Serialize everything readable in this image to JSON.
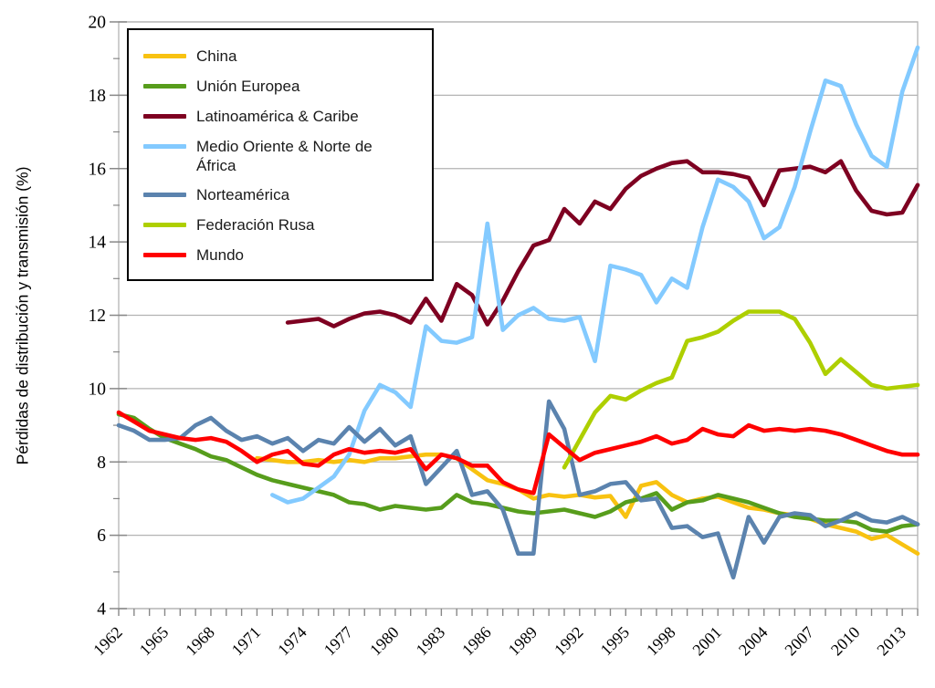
{
  "chart_data": {
    "type": "line",
    "title": "",
    "ylabel": "Pérdidas de distribución y transmisión (%)",
    "xlabel": "",
    "ylim": [
      4,
      20
    ],
    "x_range": [
      1962,
      2014
    ],
    "y_ticks": [
      4,
      6,
      8,
      10,
      12,
      14,
      16,
      18,
      20
    ],
    "x_tick_labels": [
      "1962",
      "1965",
      "1968",
      "1971",
      "1974",
      "1977",
      "1980",
      "1983",
      "1986",
      "1989",
      "1992",
      "1995",
      "1998",
      "2001",
      "2004",
      "2007",
      "2010",
      "2013"
    ],
    "x_label_step_years": 3,
    "x_minor_tick_step_years": 1,
    "grid": "horizontal",
    "legend_position": "top-left",
    "background_color": "#ffffff",
    "grid_color": "#b3b3b3",
    "tick_color": "#888888",
    "text_color": "#000000",
    "series": [
      {
        "name": "China",
        "color": "#F8C211",
        "start_year": 1971,
        "values": [
          8.1,
          8.05,
          8.0,
          8.0,
          8.05,
          8.0,
          8.05,
          8.0,
          8.1,
          8.1,
          8.15,
          8.2,
          8.2,
          8.1,
          7.8,
          7.5,
          7.4,
          7.25,
          7.0,
          7.1,
          7.05,
          7.1,
          7.03,
          7.07,
          6.5,
          7.35,
          7.45,
          7.1,
          6.9,
          7.0,
          7.05,
          6.9,
          6.75,
          6.7,
          6.6,
          6.55,
          6.45,
          6.3,
          6.2,
          6.1,
          5.9,
          6.0,
          5.75,
          5.5
        ]
      },
      {
        "name": "Unión Europea",
        "color": "#579D1C",
        "start_year": 1962,
        "values": [
          9.3,
          9.2,
          8.9,
          8.65,
          8.5,
          8.35,
          8.15,
          8.05,
          7.85,
          7.65,
          7.5,
          7.4,
          7.3,
          7.2,
          7.1,
          6.9,
          6.85,
          6.7,
          6.8,
          6.75,
          6.7,
          6.75,
          7.1,
          6.9,
          6.85,
          6.75,
          6.65,
          6.6,
          6.65,
          6.7,
          6.6,
          6.5,
          6.65,
          6.9,
          7.0,
          7.15,
          6.7,
          6.9,
          6.95,
          7.1,
          7.0,
          6.9,
          6.75,
          6.6,
          6.5,
          6.45,
          6.4,
          6.4,
          6.35,
          6.15,
          6.1,
          6.25,
          6.3
        ]
      },
      {
        "name": "Latinoamérica & Caribe",
        "color": "#7E0021",
        "start_year": 1973,
        "values": [
          11.8,
          11.85,
          11.9,
          11.7,
          11.9,
          12.05,
          12.1,
          12.0,
          11.8,
          12.45,
          11.85,
          12.85,
          12.55,
          11.75,
          12.4,
          13.2,
          13.9,
          14.05,
          14.9,
          14.5,
          15.1,
          14.9,
          15.45,
          15.8,
          16.0,
          16.15,
          16.2,
          15.9,
          15.9,
          15.85,
          15.75,
          15.0,
          15.95,
          16.0,
          16.05,
          15.9,
          16.2,
          15.4,
          14.85,
          14.75,
          14.8,
          15.55
        ]
      },
      {
        "name": "Medio Oriente & Norte de África",
        "color": "#83CAFF",
        "start_year": 1972,
        "values": [
          7.1,
          6.9,
          7.0,
          7.3,
          7.6,
          8.2,
          9.4,
          10.1,
          9.9,
          9.5,
          11.7,
          11.3,
          11.25,
          11.4,
          14.5,
          11.6,
          12.0,
          12.2,
          11.9,
          11.85,
          11.95,
          10.75,
          13.35,
          13.25,
          13.1,
          12.35,
          13.0,
          12.75,
          14.4,
          15.7,
          15.5,
          15.1,
          14.1,
          14.4,
          15.5,
          17.0,
          18.4,
          18.25,
          17.2,
          16.35,
          16.05,
          18.1,
          19.3
        ]
      },
      {
        "name": "Norteamérica",
        "color": "#5B83AE",
        "start_year": 1962,
        "values": [
          9.0,
          8.85,
          8.6,
          8.6,
          8.65,
          9.0,
          9.2,
          8.85,
          8.6,
          8.7,
          8.5,
          8.65,
          8.3,
          8.6,
          8.5,
          8.95,
          8.55,
          8.9,
          8.45,
          8.7,
          7.4,
          7.85,
          8.3,
          7.1,
          7.2,
          6.7,
          5.5,
          5.5,
          9.65,
          8.9,
          7.1,
          7.2,
          7.4,
          7.45,
          6.95,
          7.0,
          6.2,
          6.25,
          5.95,
          6.05,
          4.85,
          6.5,
          5.8,
          6.5,
          6.6,
          6.55,
          6.25,
          6.4,
          6.6,
          6.4,
          6.35,
          6.5,
          6.3
        ]
      },
      {
        "name": "Federación Rusa",
        "color": "#AECF00",
        "start_year": 1991,
        "values": [
          7.85,
          8.6,
          9.35,
          9.8,
          9.7,
          9.95,
          10.15,
          10.3,
          11.3,
          11.4,
          11.55,
          11.85,
          12.1,
          12.1,
          12.1,
          11.9,
          11.25,
          10.4,
          10.8,
          10.45,
          10.1,
          10.0,
          10.05,
          10.1
        ]
      },
      {
        "name": "Mundo",
        "color": "#FF0000",
        "start_year": 1962,
        "values": [
          9.35,
          9.1,
          8.85,
          8.75,
          8.65,
          8.6,
          8.65,
          8.55,
          8.3,
          8.0,
          8.2,
          8.3,
          7.95,
          7.9,
          8.2,
          8.35,
          8.25,
          8.3,
          8.25,
          8.35,
          7.8,
          8.2,
          8.1,
          7.9,
          7.9,
          7.45,
          7.25,
          7.15,
          8.75,
          8.4,
          8.05,
          8.25,
          8.35,
          8.45,
          8.55,
          8.7,
          8.5,
          8.6,
          8.9,
          8.75,
          8.7,
          9.0,
          8.85,
          8.9,
          8.85,
          8.9,
          8.85,
          8.75,
          8.6,
          8.45,
          8.3,
          8.2,
          8.2
        ]
      }
    ]
  }
}
